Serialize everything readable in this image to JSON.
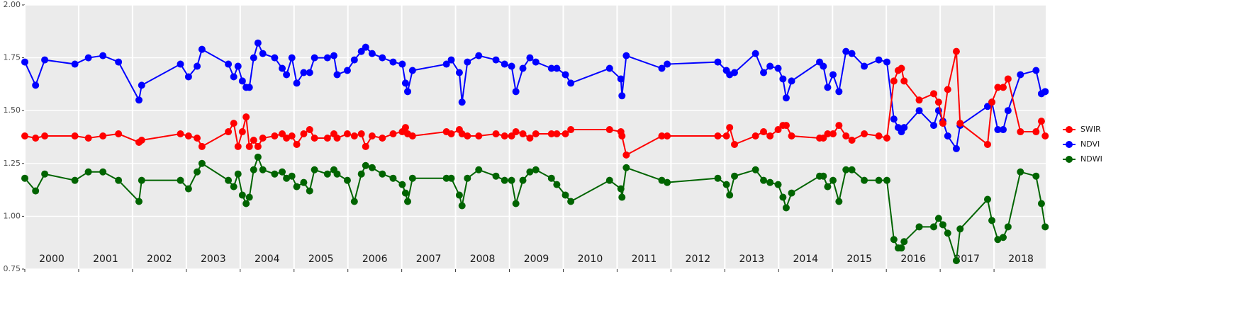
{
  "chart_data": {
    "type": "line",
    "x": [
      2000.0,
      2000.2,
      2000.37,
      2000.93,
      2001.18,
      2001.45,
      2001.74,
      2002.12,
      2002.17,
      2002.89,
      2003.04,
      2003.2,
      2003.29,
      2003.78,
      2003.88,
      2003.96,
      2004.04,
      2004.11,
      2004.17,
      2004.25,
      2004.33,
      2004.42,
      2004.64,
      2004.78,
      2004.86,
      2004.96,
      2005.05,
      2005.18,
      2005.29,
      2005.38,
      2005.62,
      2005.74,
      2005.8,
      2005.99,
      2006.12,
      2006.25,
      2006.33,
      2006.45,
      2006.64,
      2006.84,
      2007.01,
      2007.07,
      2007.11,
      2007.2,
      2007.83,
      2007.92,
      2008.07,
      2008.12,
      2008.22,
      2008.43,
      2008.75,
      2008.91,
      2009.04,
      2009.12,
      2009.25,
      2009.38,
      2009.49,
      2009.78,
      2009.88,
      2010.04,
      2010.14,
      2010.86,
      2011.07,
      2011.09,
      2011.17,
      2011.83,
      2011.93,
      2012.87,
      2013.03,
      2013.09,
      2013.18,
      2013.57,
      2013.72,
      2013.84,
      2013.99,
      2014.08,
      2014.14,
      2014.24,
      2014.76,
      2014.83,
      2014.91,
      2015.01,
      2015.12,
      2015.25,
      2015.36,
      2015.59,
      2015.86,
      2016.01,
      2016.14,
      2016.22,
      2016.28,
      2016.33,
      2016.61,
      2016.88,
      2016.97,
      2017.05,
      2017.14,
      2017.3,
      2017.37,
      2017.88,
      2017.96,
      2018.07,
      2018.17,
      2018.26,
      2018.49,
      2018.78,
      2018.88,
      2018.95
    ],
    "series": [
      {
        "name": "SWIR",
        "color": "#ff0000",
        "values": [
          1.38,
          1.37,
          1.38,
          1.38,
          1.37,
          1.38,
          1.39,
          1.35,
          1.36,
          1.39,
          1.38,
          1.37,
          1.33,
          1.4,
          1.44,
          1.33,
          1.4,
          1.47,
          1.33,
          1.36,
          1.33,
          1.37,
          1.38,
          1.39,
          1.37,
          1.38,
          1.34,
          1.39,
          1.41,
          1.37,
          1.37,
          1.39,
          1.37,
          1.39,
          1.38,
          1.39,
          1.33,
          1.38,
          1.37,
          1.39,
          1.4,
          1.42,
          1.39,
          1.38,
          1.4,
          1.39,
          1.41,
          1.39,
          1.38,
          1.38,
          1.39,
          1.38,
          1.38,
          1.4,
          1.39,
          1.37,
          1.39,
          1.39,
          1.39,
          1.39,
          1.41,
          1.41,
          1.4,
          1.38,
          1.29,
          1.38,
          1.38,
          1.38,
          1.38,
          1.42,
          1.34,
          1.38,
          1.4,
          1.38,
          1.41,
          1.43,
          1.43,
          1.38,
          1.37,
          1.37,
          1.39,
          1.39,
          1.43,
          1.38,
          1.36,
          1.39,
          1.38,
          1.37,
          1.64,
          1.69,
          1.7,
          1.64,
          1.55,
          1.58,
          1.54,
          1.44,
          1.6,
          1.78,
          1.44,
          1.34,
          1.54,
          1.61,
          1.61,
          1.65,
          1.4,
          1.4,
          1.45,
          1.38
        ]
      },
      {
        "name": "NDVI",
        "color": "#0000ff",
        "values": [
          1.73,
          1.62,
          1.74,
          1.72,
          1.75,
          1.76,
          1.73,
          1.55,
          1.62,
          1.72,
          1.66,
          1.71,
          1.79,
          1.72,
          1.66,
          1.71,
          1.64,
          1.61,
          1.61,
          1.75,
          1.82,
          1.77,
          1.75,
          1.7,
          1.67,
          1.75,
          1.63,
          1.68,
          1.68,
          1.75,
          1.75,
          1.76,
          1.67,
          1.69,
          1.74,
          1.78,
          1.8,
          1.77,
          1.75,
          1.73,
          1.72,
          1.63,
          1.59,
          1.69,
          1.72,
          1.74,
          1.68,
          1.54,
          1.73,
          1.76,
          1.74,
          1.72,
          1.71,
          1.59,
          1.7,
          1.75,
          1.73,
          1.7,
          1.7,
          1.67,
          1.63,
          1.7,
          1.65,
          1.57,
          1.76,
          1.7,
          1.72,
          1.73,
          1.69,
          1.67,
          1.68,
          1.77,
          1.68,
          1.71,
          1.7,
          1.65,
          1.56,
          1.64,
          1.73,
          1.71,
          1.61,
          1.67,
          1.59,
          1.78,
          1.77,
          1.71,
          1.74,
          1.73,
          1.46,
          1.42,
          1.4,
          1.42,
          1.5,
          1.43,
          1.5,
          1.45,
          1.38,
          1.32,
          1.43,
          1.52,
          1.54,
          1.41,
          1.41,
          1.5,
          1.67,
          1.69,
          1.58,
          1.59
        ]
      },
      {
        "name": "NDWI",
        "color": "#006400",
        "values": [
          1.18,
          1.12,
          1.2,
          1.17,
          1.21,
          1.21,
          1.17,
          1.07,
          1.17,
          1.17,
          1.13,
          1.21,
          1.25,
          1.17,
          1.14,
          1.2,
          1.1,
          1.06,
          1.09,
          1.22,
          1.28,
          1.22,
          1.2,
          1.21,
          1.18,
          1.19,
          1.14,
          1.16,
          1.12,
          1.22,
          1.2,
          1.22,
          1.2,
          1.17,
          1.07,
          1.2,
          1.24,
          1.23,
          1.2,
          1.18,
          1.15,
          1.11,
          1.07,
          1.18,
          1.18,
          1.18,
          1.1,
          1.05,
          1.18,
          1.22,
          1.19,
          1.17,
          1.17,
          1.06,
          1.17,
          1.21,
          1.22,
          1.18,
          1.15,
          1.1,
          1.07,
          1.17,
          1.13,
          1.09,
          1.23,
          1.17,
          1.16,
          1.18,
          1.15,
          1.1,
          1.19,
          1.22,
          1.17,
          1.16,
          1.15,
          1.09,
          1.04,
          1.11,
          1.19,
          1.19,
          1.14,
          1.17,
          1.07,
          1.22,
          1.22,
          1.17,
          1.17,
          1.17,
          0.89,
          0.85,
          0.85,
          0.88,
          0.95,
          0.95,
          0.99,
          0.96,
          0.92,
          0.79,
          0.94,
          1.08,
          0.98,
          0.89,
          0.9,
          0.95,
          1.21,
          1.19,
          1.06,
          0.95
        ]
      }
    ],
    "xlim": [
      2000,
      2018.96
    ],
    "xticks": [
      {
        "value": 2000,
        "label": "2000"
      },
      {
        "value": 2001,
        "label": "2001"
      },
      {
        "value": 2002,
        "label": "2002"
      },
      {
        "value": 2003,
        "label": "2003"
      },
      {
        "value": 2004,
        "label": "2004"
      },
      {
        "value": 2005,
        "label": "2005"
      },
      {
        "value": 2006,
        "label": "2006"
      },
      {
        "value": 2007,
        "label": "2007"
      },
      {
        "value": 2008,
        "label": "2008"
      },
      {
        "value": 2009,
        "label": "2009"
      },
      {
        "value": 2010,
        "label": "2010"
      },
      {
        "value": 2011,
        "label": "2011"
      },
      {
        "value": 2012,
        "label": "2012"
      },
      {
        "value": 2013,
        "label": "2013"
      },
      {
        "value": 2014,
        "label": "2014"
      },
      {
        "value": 2015,
        "label": "2015"
      },
      {
        "value": 2016,
        "label": "2016"
      },
      {
        "value": 2017,
        "label": "2017"
      },
      {
        "value": 2018,
        "label": "2018"
      }
    ],
    "ylim": [
      0.75,
      2.0
    ],
    "yticks": [
      {
        "value": 0.75,
        "label": "0.75"
      },
      {
        "value": 1.0,
        "label": "1.00"
      },
      {
        "value": 1.25,
        "label": "1.25"
      },
      {
        "value": 1.5,
        "label": "1.50"
      },
      {
        "value": 1.75,
        "label": "1.75"
      },
      {
        "value": 2.0,
        "label": "2.00"
      }
    ],
    "grid": true,
    "legend": "right"
  }
}
